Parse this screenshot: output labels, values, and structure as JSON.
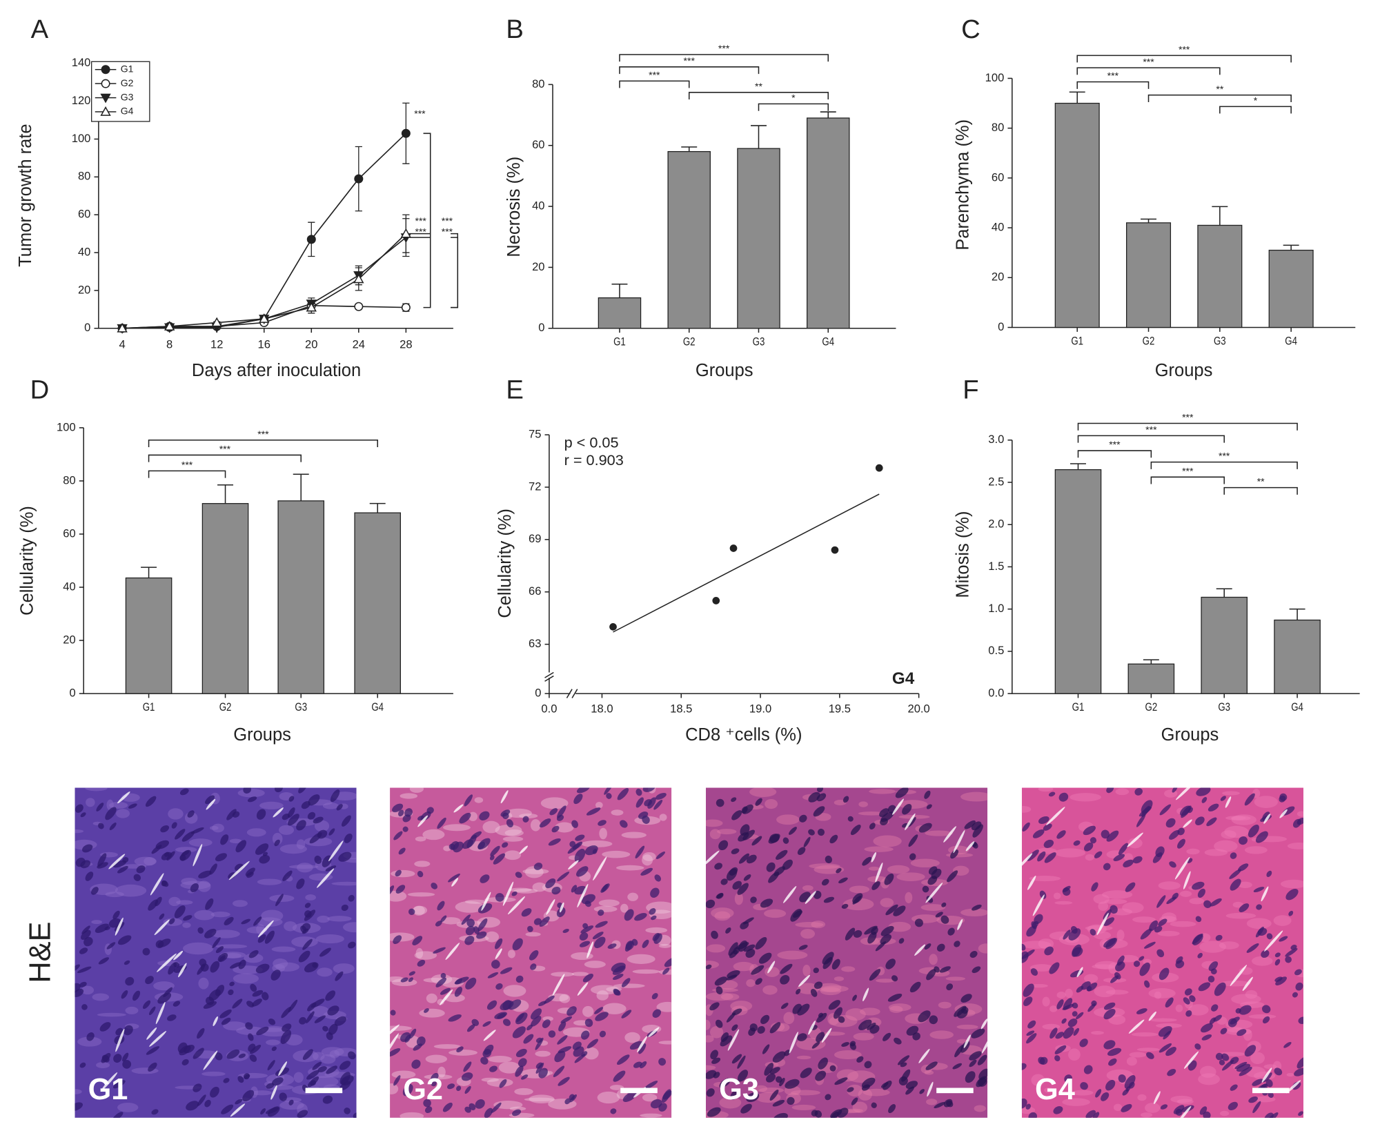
{
  "chart_data": [
    {
      "type": "line",
      "panel": "A",
      "xlabel": "Days after inoculation",
      "ylabel": "Tumor growth rate",
      "x": [
        4,
        8,
        12,
        16,
        20,
        24,
        28
      ],
      "xlim": [
        2,
        32
      ],
      "xticks": [
        4,
        8,
        12,
        16,
        20,
        24,
        28
      ],
      "ylim": [
        0,
        140
      ],
      "yticks": [
        0,
        20,
        40,
        60,
        80,
        100,
        120,
        140
      ],
      "series": [
        {
          "name": "G1",
          "color": "#222222",
          "marker": "filled-circle",
          "values": [
            0,
            1,
            1,
            5,
            47,
            79,
            103
          ],
          "errors": [
            0,
            0.5,
            0.5,
            1,
            9,
            17,
            16
          ]
        },
        {
          "name": "G2",
          "color": "#222222",
          "marker": "open-circle",
          "values": [
            0,
            0.5,
            1,
            3,
            12,
            11.5,
            11
          ],
          "errors": [
            0,
            0.3,
            0.3,
            0.5,
            2,
            1,
            2
          ]
        },
        {
          "name": "G3",
          "color": "#222222",
          "marker": "filled-triangle-down",
          "values": [
            0,
            0.5,
            0.5,
            5,
            13,
            28,
            48
          ],
          "errors": [
            0,
            0.3,
            0.3,
            1,
            3,
            5,
            10
          ]
        },
        {
          "name": "G4",
          "color": "#222222",
          "marker": "open-triangle-up",
          "values": [
            0,
            1,
            3,
            5,
            11,
            26,
            50
          ],
          "errors": [
            0,
            0.5,
            0.5,
            1,
            3,
            6,
            10
          ]
        }
      ],
      "annotations": [
        {
          "text": "***",
          "groups": [
            "G1",
            "G2"
          ]
        },
        {
          "text": "***",
          "groups": [
            "G3",
            "G1"
          ]
        },
        {
          "text": "***",
          "groups": [
            "G4",
            "G1"
          ]
        },
        {
          "text": "***",
          "groups": [
            "G3",
            "G2"
          ]
        },
        {
          "text": "***",
          "groups": [
            "G4",
            "G2"
          ]
        }
      ],
      "legend": "upper left"
    },
    {
      "type": "bar",
      "panel": "B",
      "xlabel": "Groups",
      "ylabel": "Necrosis (%)",
      "color": "#8c8c8c",
      "categories": [
        "G1",
        "G2",
        "G3",
        "G4"
      ],
      "values": [
        10,
        58,
        59,
        69
      ],
      "errors": [
        4.5,
        1.5,
        7.5,
        2
      ],
      "ylim": [
        0,
        80
      ],
      "yticks": [
        0,
        20,
        40,
        60,
        80
      ],
      "annotations": [
        {
          "text": "***",
          "groups": [
            "G1",
            "G2"
          ]
        },
        {
          "text": "***",
          "groups": [
            "G1",
            "G3"
          ]
        },
        {
          "text": "***",
          "groups": [
            "G1",
            "G4"
          ]
        },
        {
          "text": "**",
          "groups": [
            "G2",
            "G4"
          ]
        },
        {
          "text": "*",
          "groups": [
            "G3",
            "G4"
          ]
        }
      ]
    },
    {
      "type": "bar",
      "panel": "C",
      "xlabel": "Groups",
      "ylabel": "Parenchyma (%)",
      "color": "#8c8c8c",
      "categories": [
        "G1",
        "G2",
        "G3",
        "G4"
      ],
      "values": [
        90,
        42,
        41,
        31
      ],
      "errors": [
        4.5,
        1.5,
        7.5,
        2
      ],
      "ylim": [
        0,
        100
      ],
      "yticks": [
        0,
        20,
        40,
        60,
        80,
        100
      ],
      "annotations": [
        {
          "text": "***",
          "groups": [
            "G1",
            "G2"
          ]
        },
        {
          "text": "***",
          "groups": [
            "G1",
            "G3"
          ]
        },
        {
          "text": "***",
          "groups": [
            "G1",
            "G4"
          ]
        },
        {
          "text": "**",
          "groups": [
            "G2",
            "G4"
          ]
        },
        {
          "text": "*",
          "groups": [
            "G3",
            "G4"
          ]
        }
      ]
    },
    {
      "type": "bar",
      "panel": "D",
      "xlabel": "Groups",
      "ylabel": "Cellularity (%)",
      "color": "#8c8c8c",
      "categories": [
        "G1",
        "G2",
        "G3",
        "G4"
      ],
      "values": [
        43.5,
        71.5,
        72.5,
        68
      ],
      "errors": [
        4,
        7,
        10,
        3.5
      ],
      "ylim": [
        0,
        100
      ],
      "yticks": [
        0,
        20,
        40,
        60,
        80,
        100
      ],
      "annotations": [
        {
          "text": "***",
          "groups": [
            "G1",
            "G2"
          ]
        },
        {
          "text": "***",
          "groups": [
            "G1",
            "G3"
          ]
        },
        {
          "text": "***",
          "groups": [
            "G1",
            "G4"
          ]
        }
      ]
    },
    {
      "type": "scatter",
      "panel": "E",
      "xlabel": "CD8 ⁺cells (%)",
      "ylabel": "Cellularity (%)",
      "color": "#222222",
      "x": [
        18.07,
        18.72,
        18.83,
        19.47,
        19.75
      ],
      "values": [
        64.0,
        65.5,
        68.5,
        68.4,
        73.1
      ],
      "fit_line": {
        "x": [
          18.07,
          19.75
        ],
        "values": [
          63.7,
          71.6
        ]
      },
      "xlim": [
        0,
        20
      ],
      "xticks": [
        {
          "value": 0,
          "label": "0.0"
        },
        {
          "value": 18,
          "label": "18.0"
        },
        18.5,
        {
          "value": 19,
          "label": "19.0"
        },
        19.5,
        {
          "value": 20,
          "label": "20.0"
        }
      ],
      "ylim": [
        0,
        75
      ],
      "yticks": [
        0,
        63,
        66,
        69,
        72,
        75
      ],
      "axis_break": true,
      "annotations": [
        "p < 0.05",
        "r = 0.903"
      ],
      "group_label": "G4"
    },
    {
      "type": "bar",
      "panel": "F",
      "xlabel": "Groups",
      "ylabel": "Mitosis (%)",
      "color": "#8c8c8c",
      "categories": [
        "G1",
        "G2",
        "G3",
        "G4"
      ],
      "values": [
        2.65,
        0.35,
        1.14,
        0.87
      ],
      "errors": [
        0.07,
        0.05,
        0.1,
        0.13
      ],
      "ylim": [
        0,
        3
      ],
      "yticks": [
        {
          "value": 0,
          "label": "0.0"
        },
        0.5,
        {
          "value": 1,
          "label": "1.0"
        },
        1.5,
        {
          "value": 2,
          "label": "2.0"
        },
        2.5,
        {
          "value": 3,
          "label": "3.0"
        }
      ],
      "annotations": [
        {
          "text": "***",
          "groups": [
            "G1",
            "G2"
          ]
        },
        {
          "text": "***",
          "groups": [
            "G1",
            "G3"
          ]
        },
        {
          "text": "***",
          "groups": [
            "G1",
            "G4"
          ]
        },
        {
          "text": "***",
          "groups": [
            "G2",
            "G4"
          ]
        },
        {
          "text": "***",
          "groups": [
            "G2",
            "G3"
          ]
        },
        {
          "text": "**",
          "groups": [
            "G3",
            "G4"
          ]
        }
      ]
    }
  ],
  "micrographs": {
    "row_label": "H&E",
    "labels": [
      "G1",
      "G2",
      "G3",
      "G4"
    ]
  }
}
